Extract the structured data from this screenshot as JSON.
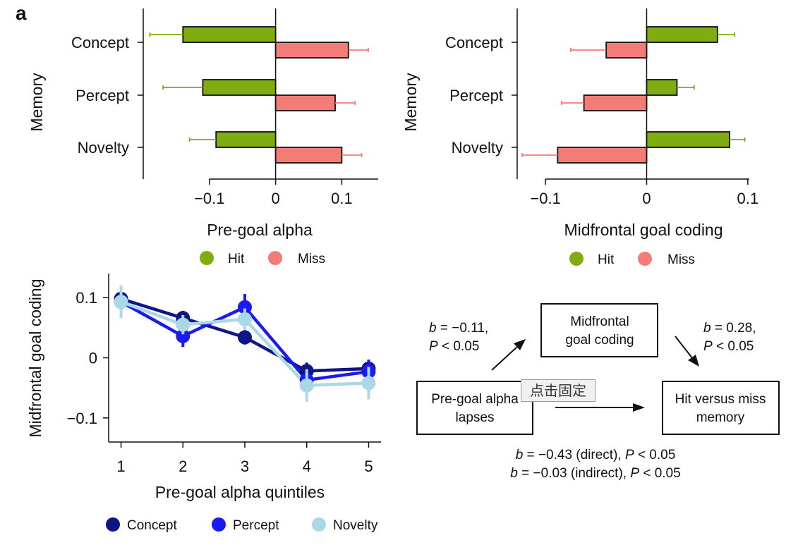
{
  "panel_label": "a",
  "tooltip_text": "点击固定",
  "colors": {
    "hit": "#7fad11",
    "miss": "#f47c76",
    "concept": "#0e1585",
    "percept": "#1a1af2",
    "novelty": "#abd8e6"
  },
  "chart_data": [
    {
      "type": "bar",
      "orientation": "horizontal",
      "categories": [
        "Concept",
        "Percept",
        "Novelty"
      ],
      "series": [
        {
          "name": "Hit",
          "values": [
            -0.14,
            -0.11,
            -0.09
          ],
          "err": [
            0.05,
            0.06,
            0.04
          ]
        },
        {
          "name": "Miss",
          "values": [
            0.11,
            0.09,
            0.1
          ],
          "err": [
            0.03,
            0.03,
            0.03
          ]
        }
      ],
      "xlabel": "Pre-goal alpha",
      "ylabel": "Memory",
      "xlim": [
        -0.2,
        0.155
      ],
      "xticks": [
        {
          "v": -0.1,
          "label": "−0.1"
        },
        {
          "v": 0,
          "label": "0"
        },
        {
          "v": 0.1,
          "label": "0.1"
        }
      ],
      "legend_position": "bottom"
    },
    {
      "type": "bar",
      "orientation": "horizontal",
      "categories": [
        "Concept",
        "Percept",
        "Novelty"
      ],
      "series": [
        {
          "name": "Hit",
          "values": [
            0.07,
            0.03,
            0.082
          ],
          "err": [
            0.017,
            0.017,
            0.015
          ]
        },
        {
          "name": "Miss",
          "values": [
            -0.04,
            -0.062,
            -0.088
          ],
          "err": [
            0.035,
            0.022,
            0.035
          ]
        }
      ],
      "xlabel": "Midfrontal goal coding",
      "ylabel": "Memory",
      "xlim": [
        -0.128,
        0.105
      ],
      "xticks": [
        {
          "v": -0.1,
          "label": "−0.1"
        },
        {
          "v": 0,
          "label": "0"
        },
        {
          "v": 0.1,
          "label": "0.1"
        }
      ],
      "legend_position": "bottom"
    },
    {
      "type": "line",
      "x": [
        1,
        2,
        3,
        4,
        5
      ],
      "series": [
        {
          "name": "Concept",
          "values": [
            0.098,
            0.066,
            0.034,
            -0.022,
            -0.018
          ],
          "err": [
            0.012,
            0.012,
            0.012,
            0.014,
            0.014
          ]
        },
        {
          "name": "Percept",
          "values": [
            0.093,
            0.036,
            0.084,
            -0.037,
            -0.023
          ],
          "err": [
            0.016,
            0.018,
            0.022,
            0.018,
            0.02
          ]
        },
        {
          "name": "Novelty",
          "values": [
            0.093,
            0.055,
            0.064,
            -0.046,
            -0.042
          ],
          "err": [
            0.027,
            0.016,
            0.018,
            0.027,
            0.027
          ]
        }
      ],
      "xlabel": "Pre-goal alpha quintiles",
      "ylabel": "Midfrontal goal coding",
      "xlim": [
        0.8,
        5.2
      ],
      "ylim": [
        -0.14,
        0.14
      ],
      "xticks": [
        {
          "v": 1,
          "label": "1"
        },
        {
          "v": 2,
          "label": "2"
        },
        {
          "v": 3,
          "label": "3"
        },
        {
          "v": 4,
          "label": "4"
        },
        {
          "v": 5,
          "label": "5"
        }
      ],
      "yticks": [
        {
          "v": 0.1,
          "label": "0.1"
        },
        {
          "v": 0,
          "label": "0"
        },
        {
          "v": -0.1,
          "label": "−0.1"
        }
      ],
      "legend_position": "bottom"
    }
  ],
  "mediation": {
    "box_mediator": [
      "Midfrontal",
      "goal coding"
    ],
    "box_predictor": [
      "Pre-goal alpha",
      "lapses"
    ],
    "box_outcome": [
      "Hit versus miss",
      "memory"
    ],
    "path_a": {
      "b": "−0.11,",
      "p": "< 0.05"
    },
    "path_b": {
      "b": "0.28,",
      "p": "< 0.05"
    },
    "direct": {
      "b": "−0.43 (direct),",
      "p": "< 0.05"
    },
    "indirect": {
      "b": "−0.03 (indirect),",
      "p": "< 0.05"
    }
  }
}
